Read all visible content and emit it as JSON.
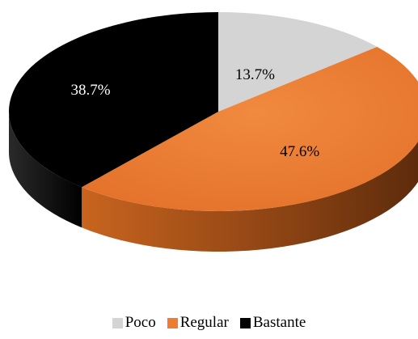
{
  "chart_data": {
    "type": "pie",
    "title": "",
    "categories": [
      "Poco",
      "Regular",
      "Bastante"
    ],
    "values": [
      13.7,
      47.6,
      38.7
    ],
    "labels": [
      "13.7%",
      "47.6%",
      "38.7%"
    ],
    "colors": [
      "#d4d4d4",
      "#ed7d31",
      "#000000"
    ],
    "legend_position": "bottom"
  }
}
